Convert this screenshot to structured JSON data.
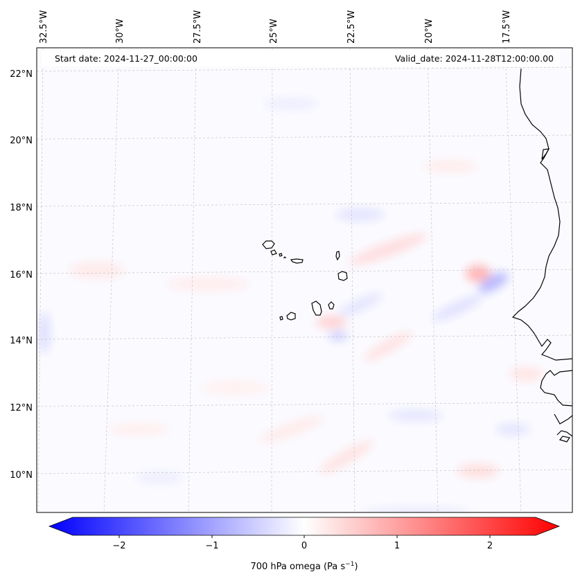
{
  "map": {
    "start_text": "Start date: 2024-11-27_00:00:00",
    "valid_text": "Valid_date: 2024-11-28T12:00:00.00",
    "lon_labels": [
      "32.5°W",
      "30°W",
      "27.5°W",
      "25°W",
      "22.5°W",
      "20°W",
      "17.5°W"
    ],
    "lat_labels": [
      "22°N",
      "20°N",
      "18°N",
      "16°N",
      "14°N",
      "12°N",
      "10°N"
    ],
    "colorbar": {
      "ticks": [
        "−2",
        "−1",
        "0",
        "1",
        "2"
      ],
      "range": [
        -2.5,
        2.5
      ],
      "label": "700 hPa omega (Pa s",
      "label_sup": "−1",
      "label_end": ")",
      "colormap": "bwr",
      "colors": {
        "negative": "#0000ff",
        "zero": "#ffffff",
        "positive": "#ff0000"
      }
    },
    "features": [
      "Cape Verde islands",
      "West African coastline",
      "gridlines"
    ]
  }
}
